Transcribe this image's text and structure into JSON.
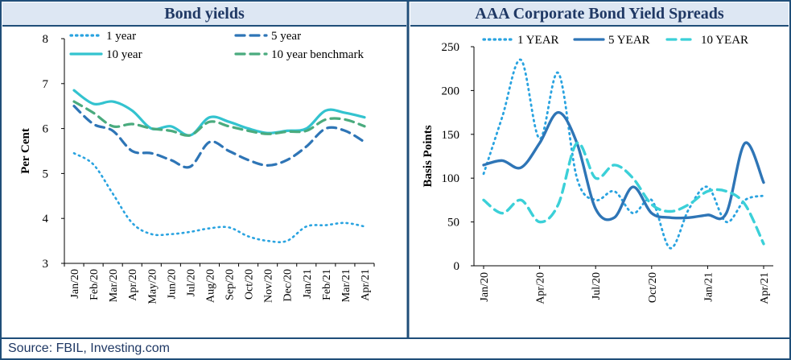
{
  "source": "Source: FBIL, Investing.com",
  "colors": {
    "border": "#1f4e79",
    "title_bg": "#dde7f3",
    "title_text": "#1f3864"
  },
  "chart_data": [
    {
      "type": "line",
      "title": "Bond yields",
      "ylabel": "Per Cent",
      "xlabel": "",
      "ylim": [
        3,
        8
      ],
      "yticks": [
        3,
        4,
        5,
        6,
        7,
        8
      ],
      "grid": false,
      "legend_position": "top",
      "categories": [
        "Jan/20",
        "Feb/20",
        "Mar/20",
        "Apr/20",
        "May/20",
        "Jun/20",
        "Jul/20",
        "Aug/20",
        "Sep/20",
        "Oct/20",
        "Nov/20",
        "Dec/20",
        "Jan/21",
        "Feb/21",
        "Mar/21",
        "Apr/21"
      ],
      "series": [
        {
          "name": "1 year",
          "color": "#29a3e0",
          "style": "dotted",
          "values": [
            5.45,
            5.2,
            4.55,
            3.9,
            3.65,
            3.65,
            3.7,
            3.78,
            3.8,
            3.6,
            3.5,
            3.5,
            3.82,
            3.85,
            3.9,
            3.82
          ]
        },
        {
          "name": "5 year",
          "color": "#2e75b6",
          "style": "dashed",
          "values": [
            6.5,
            6.1,
            5.95,
            5.5,
            5.45,
            5.3,
            5.15,
            5.7,
            5.5,
            5.3,
            5.18,
            5.3,
            5.6,
            6.0,
            5.95,
            5.7
          ]
        },
        {
          "name": "10 year",
          "color": "#33c3cf",
          "style": "solid",
          "values": [
            6.85,
            6.55,
            6.6,
            6.4,
            6.0,
            6.05,
            5.85,
            6.25,
            6.15,
            6.0,
            5.9,
            5.95,
            6.0,
            6.4,
            6.35,
            6.25
          ]
        },
        {
          "name": "10 year benchmark",
          "color": "#4aab7e",
          "style": "dashed",
          "values": [
            6.6,
            6.35,
            6.05,
            6.1,
            6.0,
            5.95,
            5.85,
            6.15,
            6.05,
            5.95,
            5.88,
            5.93,
            5.95,
            6.2,
            6.2,
            6.05
          ]
        }
      ]
    },
    {
      "type": "line",
      "title": "AAA Corporate Bond Yield Spreads",
      "ylabel": "Basis Points",
      "xlabel": "",
      "ylim": [
        0,
        250
      ],
      "yticks": [
        0,
        50,
        100,
        150,
        200,
        250
      ],
      "grid": false,
      "legend_position": "top",
      "tick_labels": [
        "Jan/20",
        "Apr/20",
        "Jul/20",
        "Oct/20",
        "Jan/21",
        "Apr/21"
      ],
      "n_points": 16,
      "series": [
        {
          "name": "1 YEAR",
          "color": "#29a3e0",
          "style": "dotted",
          "values": [
            105,
            170,
            235,
            145,
            220,
            100,
            75,
            85,
            60,
            75,
            20,
            65,
            90,
            50,
            75,
            80
          ]
        },
        {
          "name": "5 YEAR",
          "color": "#2e75b6",
          "style": "solid",
          "values": [
            115,
            120,
            112,
            140,
            175,
            140,
            65,
            55,
            90,
            60,
            55,
            55,
            58,
            60,
            140,
            95
          ]
        },
        {
          "name": "10 YEAR",
          "color": "#3bd0d8",
          "style": "dashed",
          "values": [
            75,
            60,
            75,
            50,
            70,
            140,
            100,
            115,
            100,
            70,
            62,
            70,
            85,
            85,
            70,
            25
          ]
        }
      ]
    }
  ]
}
